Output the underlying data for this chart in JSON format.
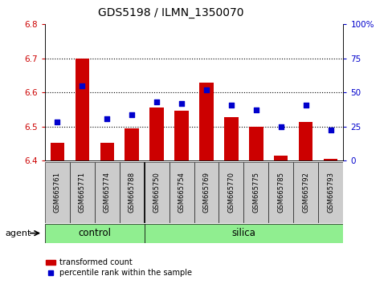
{
  "title": "GDS5198 / ILMN_1350070",
  "samples": [
    "GSM665761",
    "GSM665771",
    "GSM665774",
    "GSM665788",
    "GSM665750",
    "GSM665754",
    "GSM665769",
    "GSM665770",
    "GSM665775",
    "GSM665785",
    "GSM665792",
    "GSM665793"
  ],
  "bar_values": [
    6.452,
    6.7,
    6.452,
    6.495,
    6.555,
    6.545,
    6.628,
    6.527,
    6.5,
    6.415,
    6.512,
    6.405
  ],
  "scatter_values": [
    6.513,
    6.62,
    6.522,
    6.535,
    6.572,
    6.568,
    6.608,
    6.562,
    6.548,
    6.5,
    6.562,
    6.49
  ],
  "ylim_left": [
    6.4,
    6.8
  ],
  "ylim_right": [
    0,
    100
  ],
  "yticks_left": [
    6.4,
    6.5,
    6.6,
    6.7,
    6.8
  ],
  "yticks_right": [
    0,
    25,
    50,
    75,
    100
  ],
  "ytick_right_labels": [
    "0",
    "25",
    "50",
    "75",
    "100%"
  ],
  "bar_color": "#cc0000",
  "scatter_color": "#0000cc",
  "bar_bottom": 6.4,
  "control_color": "#90ee90",
  "silica_color": "#90ee90",
  "agent_label": "agent",
  "control_label": "control",
  "silica_label": "silica",
  "legend_bar_label": "transformed count",
  "legend_scatter_label": "percentile rank within the sample",
  "tick_label_color_left": "#cc0000",
  "tick_label_color_right": "#0000cc",
  "label_gray": "#cccccc",
  "n_control": 4,
  "n_silica": 8
}
